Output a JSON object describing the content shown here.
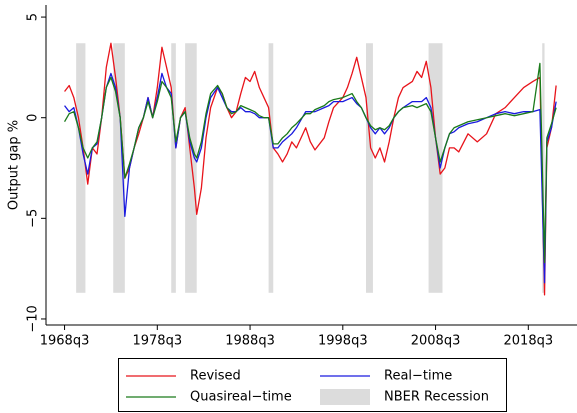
{
  "chart_data": {
    "type": "line",
    "y_label": "Output gap %",
    "x": [
      "1968q3",
      "1969q1",
      "1969q3",
      "1970q1",
      "1970q3",
      "1971q1",
      "1971q3",
      "1972q1",
      "1972q3",
      "1973q1",
      "1973q3",
      "1974q1",
      "1974q3",
      "1975q1",
      "1975q3",
      "1976q1",
      "1976q3",
      "1977q1",
      "1977q3",
      "1978q1",
      "1978q3",
      "1979q1",
      "1979q3",
      "1980q1",
      "1980q3",
      "1981q1",
      "1981q3",
      "1982q1",
      "1982q3",
      "1982q4",
      "1983q2",
      "1983q4",
      "1984q2",
      "1985q1",
      "1985q3",
      "1986q1",
      "1986q3",
      "1987q1",
      "1987q3",
      "1988q1",
      "1988q3",
      "1989q1",
      "1989q3",
      "1990q1",
      "1990q3",
      "1991q1",
      "1991q3",
      "1992q1",
      "1992q3",
      "1993q1",
      "1993q3",
      "1994q3",
      "1995q1",
      "1995q3",
      "1996q3",
      "1997q1",
      "1997q3",
      "1998q3",
      "1999q1",
      "1999q3",
      "2000q1",
      "2000q3",
      "2001q1",
      "2001q3",
      "2002q1",
      "2002q3",
      "2003q1",
      "2003q3",
      "2004q1",
      "2004q3",
      "2005q1",
      "2006q1",
      "2006q3",
      "2007q1",
      "2007q3",
      "2008q1",
      "2008q3",
      "2009q1",
      "2009q3",
      "2010q1",
      "2010q3",
      "2011q1",
      "2012q1",
      "2013q1",
      "2014q1",
      "2015q1",
      "2016q1",
      "2017q1",
      "2018q1",
      "2019q1",
      "2019q4",
      "2020q2",
      "2020q3",
      "2021q1",
      "2021q3"
    ],
    "series": [
      {
        "name": "Revised",
        "color": "#e8141b",
        "values": [
          1.3,
          1.6,
          1.0,
          0,
          -1.5,
          -3.3,
          -1.5,
          -1.8,
          0,
          2.5,
          3.7,
          2.0,
          0,
          -3.0,
          -2.5,
          -1.5,
          -0.8,
          0,
          1.0,
          0,
          1.5,
          3.5,
          2.5,
          1.5,
          -1.5,
          0,
          0.5,
          -1.5,
          -3.5,
          -4.8,
          -3.5,
          -1.0,
          0.5,
          1.5,
          1.2,
          0.5,
          0,
          0.3,
          1.2,
          2.0,
          1.8,
          2.3,
          1.5,
          1.0,
          0.5,
          -1.5,
          -1.8,
          -2.2,
          -1.8,
          -1.2,
          -1.5,
          -0.5,
          -1.2,
          -1.6,
          -1.0,
          -0.2,
          0.5,
          1.0,
          1.5,
          2.2,
          3.0,
          2.0,
          1.0,
          -1.5,
          -2.0,
          -1.5,
          -2.2,
          -1.2,
          0,
          1.0,
          1.5,
          1.8,
          2.3,
          2.0,
          2.8,
          1.5,
          -1.0,
          -2.8,
          -2.5,
          -1.5,
          -1.5,
          -1.7,
          -0.8,
          -1.2,
          -0.8,
          0.2,
          0.5,
          1.0,
          1.5,
          1.8,
          2.0,
          -8.8,
          -1.5,
          -0.5,
          1.6
        ]
      },
      {
        "name": "Real−time",
        "color": "#1a1adf",
        "values": [
          0.6,
          0.3,
          0.5,
          -0.5,
          -1.8,
          -2.8,
          -1.5,
          -1.3,
          0,
          1.5,
          2.2,
          1.5,
          0,
          -4.9,
          -2.5,
          -1.5,
          -0.5,
          0,
          1.0,
          0,
          1.0,
          2.2,
          1.5,
          1.2,
          -1.5,
          0,
          0.3,
          -1.2,
          -2.0,
          -2.2,
          -1.5,
          0,
          1.0,
          1.5,
          1.0,
          0.5,
          0.3,
          0.3,
          0.5,
          0.3,
          0.3,
          0.2,
          0,
          0,
          0,
          -1.5,
          -1.5,
          -1.2,
          -1.0,
          -0.8,
          -0.5,
          0.3,
          0.3,
          0.3,
          0.5,
          0.6,
          0.8,
          0.8,
          0.9,
          1.0,
          0.7,
          0.5,
          0,
          -0.5,
          -0.8,
          -0.5,
          -0.8,
          -0.5,
          0,
          0.3,
          0.5,
          0.8,
          0.8,
          0.8,
          1.0,
          0.5,
          -1.0,
          -2.5,
          -1.5,
          -0.8,
          -0.7,
          -0.5,
          -0.3,
          -0.2,
          0,
          0.2,
          0.3,
          0.2,
          0.3,
          0.3,
          0.4,
          -8.2,
          -1.2,
          -0.5,
          0.8
        ]
      },
      {
        "name": "Quasireal−time",
        "color": "#1a7a1a",
        "values": [
          -0.2,
          0.2,
          0.3,
          -0.5,
          -1.5,
          -2.0,
          -1.5,
          -1.2,
          0,
          1.5,
          2.0,
          1.3,
          0,
          -3.0,
          -2.3,
          -1.5,
          -0.5,
          0,
          0.8,
          0,
          0.8,
          1.8,
          1.5,
          1.0,
          -1.2,
          0,
          0.3,
          -1.0,
          -1.8,
          -2.0,
          -1.2,
          0.2,
          1.2,
          1.6,
          1.2,
          0.5,
          0.2,
          0.3,
          0.6,
          0.5,
          0.4,
          0.3,
          0.1,
          0,
          0,
          -1.3,
          -1.3,
          -1.0,
          -0.8,
          -0.5,
          -0.3,
          0.2,
          0.2,
          0.4,
          0.6,
          0.8,
          0.9,
          1.0,
          1.1,
          1.2,
          0.8,
          0.5,
          0,
          -0.4,
          -0.6,
          -0.5,
          -0.6,
          -0.4,
          0,
          0.3,
          0.5,
          0.6,
          0.5,
          0.6,
          0.7,
          0.3,
          -1.0,
          -2.2,
          -1.5,
          -0.8,
          -0.5,
          -0.4,
          -0.2,
          -0.1,
          0,
          0.1,
          0.2,
          0.1,
          0.2,
          0.3,
          2.7,
          -7.2,
          -1.0,
          -0.3,
          0.5
        ]
      }
    ],
    "recessions": {
      "name": "NBER Recession",
      "color": "#dcdcdc",
      "periods": [
        [
          "1969q4",
          "1970q4"
        ],
        [
          "1973q4",
          "1975q1"
        ],
        [
          "1980q1",
          "1980q3"
        ],
        [
          "1981q3",
          "1982q4"
        ],
        [
          "1990q3",
          "1991q1"
        ],
        [
          "2001q1",
          "2001q4"
        ],
        [
          "2007q4",
          "2009q2"
        ],
        [
          "2020q1",
          "2020q2"
        ]
      ],
      "range": [
        -8.7,
        3.7
      ]
    },
    "xlim": [
      "1966q3",
      "2023q4"
    ],
    "xticks": [
      "1968q3",
      "1978q3",
      "1988q3",
      "1998q3",
      "2008q3",
      "2018q3"
    ],
    "ylim": [
      -10.3,
      5.6
    ],
    "yticks": [
      {
        "value": 5,
        "label": "5"
      },
      {
        "value": 0,
        "label": "0"
      },
      {
        "value": -5,
        "label": "−5"
      },
      {
        "value": -10,
        "label": "−10"
      }
    ],
    "legend": "bottom"
  }
}
